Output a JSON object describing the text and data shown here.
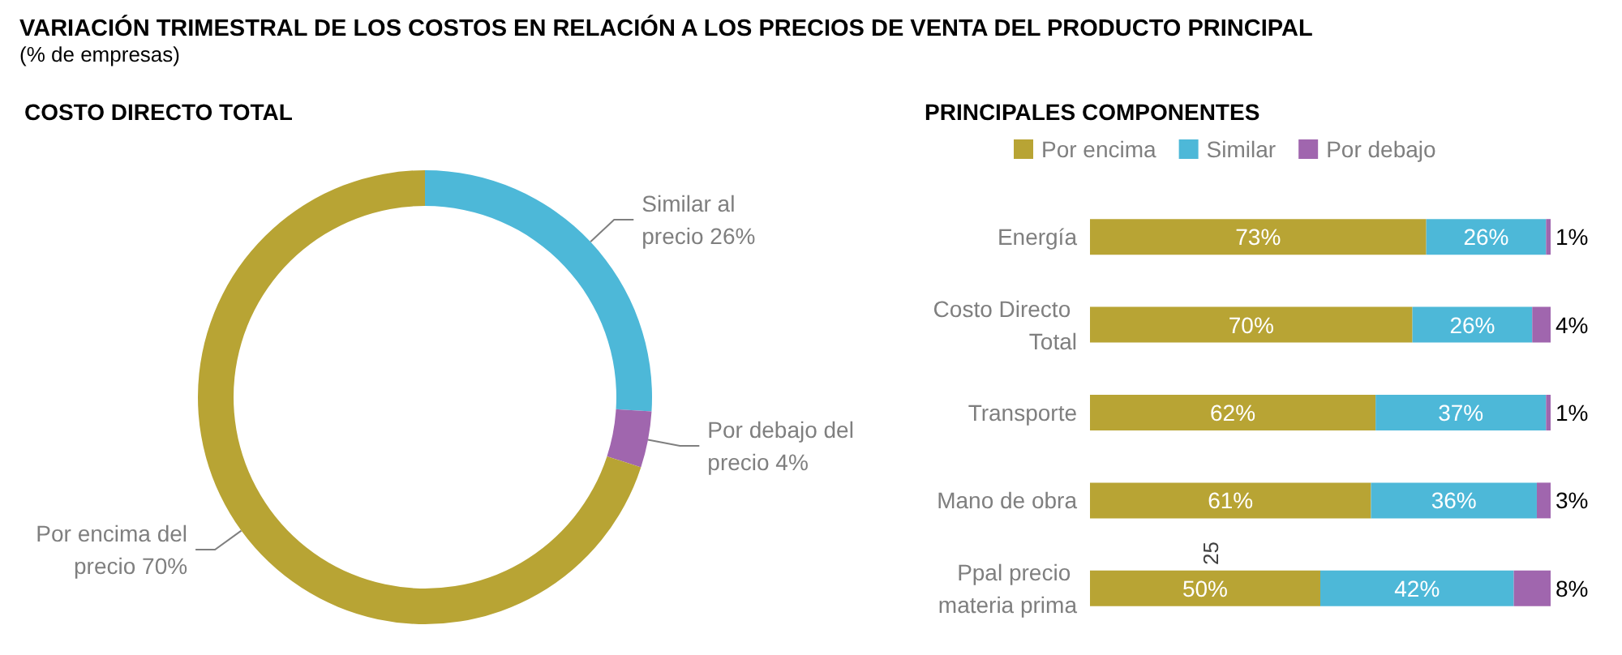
{
  "chart_data": [
    {
      "type": "other",
      "title": "VARIACIÓN TRIMESTRAL DE LOS COSTOS EN RELACIÓN A LOS PRECIOS DE VENTA DEL PRODUCTO PRINCIPAL",
      "subtitle": "(% de empresas)"
    },
    {
      "type": "donut",
      "title": "COSTO DIRECTO TOTAL",
      "categories": [
        "Similar al precio",
        "Por debajo del precio",
        "Por encima del precio"
      ],
      "values": [
        26,
        4,
        70
      ],
      "value_labels": [
        "26%",
        "4%",
        "70%"
      ],
      "colors": [
        "#4db8d8",
        "#a066ae",
        "#b8a434"
      ],
      "legend": false
    },
    {
      "type": "bar",
      "orientation": "horizontal",
      "stacked": true,
      "title": "PRINCIPALES COMPONENTES",
      "categories": [
        "Energía",
        "Costo Directo Total",
        "Transporte",
        "Mano de obra",
        "Ppal precio materia prima"
      ],
      "series": [
        {
          "name": "Por encima",
          "color": "#b8a434",
          "values": [
            73,
            70,
            62,
            61,
            50
          ],
          "value_labels": [
            "73%",
            "70%",
            "62%",
            "61%",
            "50%"
          ]
        },
        {
          "name": "Similar",
          "color": "#4db8d8",
          "values": [
            26,
            26,
            37,
            36,
            42
          ],
          "value_labels": [
            "26%",
            "26%",
            "37%",
            "36%",
            "42%"
          ]
        },
        {
          "name": "Por debajo",
          "color": "#a066ae",
          "values": [
            1,
            4,
            1,
            3,
            8
          ],
          "value_labels": [
            "1%",
            "4%",
            "1%",
            "3%",
            "8%"
          ]
        }
      ],
      "legend": "top",
      "tick_labels": "y",
      "annotations": [
        "25"
      ]
    }
  ]
}
